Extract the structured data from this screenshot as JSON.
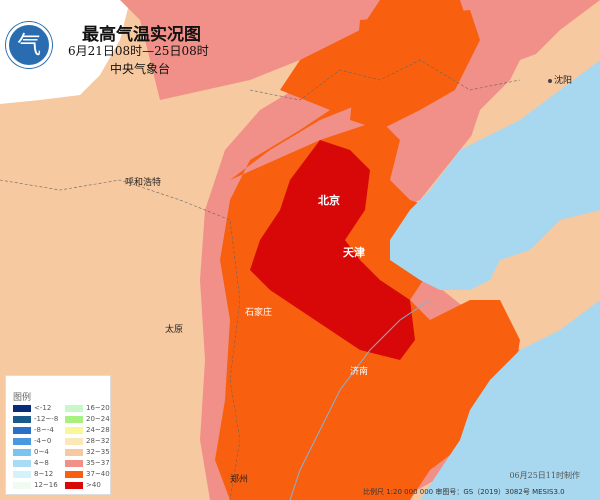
{
  "header": {
    "title": "最高气温实况图",
    "period": "6月21日08时—25日08时",
    "issuer": "中央气象台",
    "logo_text": "气"
  },
  "cities": [
    {
      "name": "沈阳"
    },
    {
      "name": "呼和浩特"
    },
    {
      "name": "北京"
    },
    {
      "name": "天津"
    },
    {
      "name": "石家庄"
    },
    {
      "name": "太原"
    },
    {
      "name": "济南"
    },
    {
      "name": "郑州"
    }
  ],
  "legend": {
    "title": "图例",
    "items": [
      {
        "label": "<-12",
        "color": "#0a2a7a"
      },
      {
        "label": "-12~-8",
        "color": "#1a5a8a"
      },
      {
        "label": "-8~-4",
        "color": "#2a70c8"
      },
      {
        "label": "-4~0",
        "color": "#4a98e0"
      },
      {
        "label": "0~4",
        "color": "#7cc4f0"
      },
      {
        "label": "4~8",
        "color": "#a8dcf4"
      },
      {
        "label": "8~12",
        "color": "#d4f2fc"
      },
      {
        "label": "12~16",
        "color": "#f2fbf2"
      },
      {
        "label": "16~20",
        "color": "#c8f8c8"
      },
      {
        "label": "20~24",
        "color": "#a8f080"
      },
      {
        "label": "24~28",
        "color": "#f8f898"
      },
      {
        "label": "28~32",
        "color": "#fbe8b8"
      },
      {
        "label": "32~35",
        "color": "#f7c9a0"
      },
      {
        "label": "35~37",
        "color": "#f09088"
      },
      {
        "label": "37~40",
        "color": "#f86010"
      },
      {
        "label": ">40",
        "color": "#d80808"
      }
    ]
  },
  "footer": {
    "made": "06月25日11时制作",
    "scale": "比例尺 1:20 000 000  审图号：GS（2019）3082号 MESIS3.0"
  },
  "colors": {
    "sea": "#a8d8f0",
    "outside": "#ffffff"
  }
}
